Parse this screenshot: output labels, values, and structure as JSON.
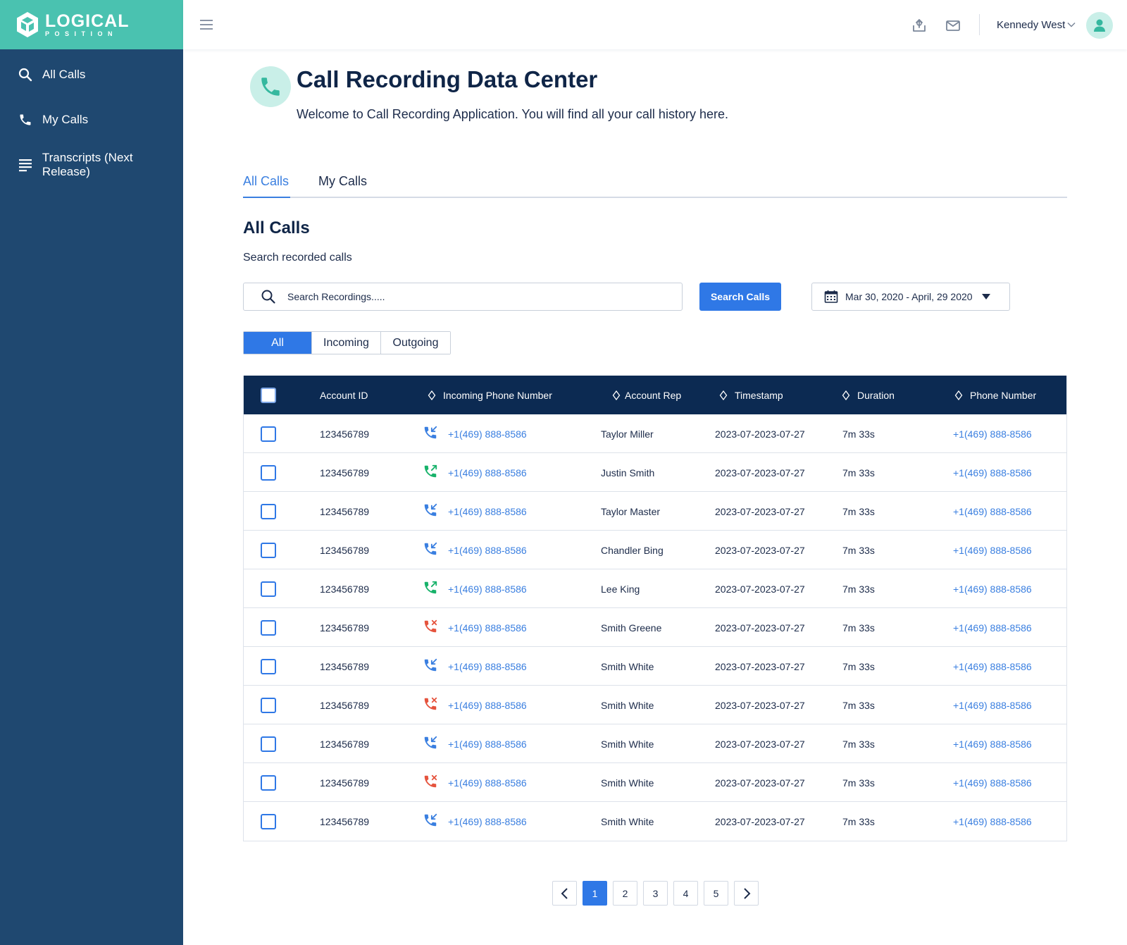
{
  "brand": {
    "name": "LOGICAL",
    "tagline": "POSITION",
    "color": "#4ac2b0"
  },
  "sidebar": {
    "items": [
      {
        "label": "All Calls",
        "icon": "search-icon"
      },
      {
        "label": "My Calls",
        "icon": "phone-icon"
      },
      {
        "label": "Transcripts (Next Release)",
        "icon": "lines-icon"
      }
    ]
  },
  "topbar": {
    "icons": [
      "upload-icon",
      "mail-icon"
    ],
    "user_name": "Kennedy West",
    "avatar_icon": "user-icon"
  },
  "header": {
    "title": "Call Recording Data Center",
    "subtitle": "Welcome to Call Recording Application. You will find all your call history here."
  },
  "tabs": [
    {
      "label": "All Calls",
      "active": true
    },
    {
      "label": "My Calls",
      "active": false
    }
  ],
  "section": {
    "title": "All Calls",
    "subtitle": "Search recorded calls"
  },
  "search": {
    "placeholder": "Search Recordings.....",
    "value": "",
    "button_label": "Search Calls"
  },
  "date_range": {
    "label": "Mar 30, 2020 - April, 29 2020"
  },
  "filters": [
    {
      "label": "All",
      "active": true
    },
    {
      "label": "Incoming",
      "active": false
    },
    {
      "label": "Outgoing",
      "active": false
    }
  ],
  "table": {
    "columns": [
      "Account ID",
      "Incoming Phone Number",
      "Account Rep",
      "Timestamp",
      "Duration",
      "Phone Number"
    ],
    "rows": [
      {
        "account_id": "123456789",
        "call_type": "incoming",
        "incoming_phone": "+1(469) 888-8586",
        "rep": "Taylor Miller",
        "timestamp": "2023-07-2023-07-27",
        "duration": "7m 33s",
        "phone": "+1(469) 888-8586"
      },
      {
        "account_id": "123456789",
        "call_type": "outgoing",
        "incoming_phone": "+1(469) 888-8586",
        "rep": "Justin Smith",
        "timestamp": "2023-07-2023-07-27",
        "duration": "7m 33s",
        "phone": "+1(469) 888-8586"
      },
      {
        "account_id": "123456789",
        "call_type": "incoming",
        "incoming_phone": "+1(469) 888-8586",
        "rep": "Taylor Master",
        "timestamp": "2023-07-2023-07-27",
        "duration": "7m 33s",
        "phone": "+1(469) 888-8586"
      },
      {
        "account_id": "123456789",
        "call_type": "incoming",
        "incoming_phone": "+1(469) 888-8586",
        "rep": "Chandler Bing",
        "timestamp": "2023-07-2023-07-27",
        "duration": "7m 33s",
        "phone": "+1(469) 888-8586"
      },
      {
        "account_id": "123456789",
        "call_type": "outgoing",
        "incoming_phone": "+1(469) 888-8586",
        "rep": "Lee King",
        "timestamp": "2023-07-2023-07-27",
        "duration": "7m 33s",
        "phone": "+1(469) 888-8586"
      },
      {
        "account_id": "123456789",
        "call_type": "missed",
        "incoming_phone": "+1(469) 888-8586",
        "rep": "Smith Greene",
        "timestamp": "2023-07-2023-07-27",
        "duration": "7m 33s",
        "phone": "+1(469) 888-8586"
      },
      {
        "account_id": "123456789",
        "call_type": "incoming",
        "incoming_phone": "+1(469) 888-8586",
        "rep": "Smith White",
        "timestamp": "2023-07-2023-07-27",
        "duration": "7m 33s",
        "phone": "+1(469) 888-8586"
      },
      {
        "account_id": "123456789",
        "call_type": "missed",
        "incoming_phone": "+1(469) 888-8586",
        "rep": "Smith White",
        "timestamp": "2023-07-2023-07-27",
        "duration": "7m 33s",
        "phone": "+1(469) 888-8586"
      },
      {
        "account_id": "123456789",
        "call_type": "incoming",
        "incoming_phone": "+1(469) 888-8586",
        "rep": "Smith White",
        "timestamp": "2023-07-2023-07-27",
        "duration": "7m 33s",
        "phone": "+1(469) 888-8586"
      },
      {
        "account_id": "123456789",
        "call_type": "missed",
        "incoming_phone": "+1(469) 888-8586",
        "rep": "Smith White",
        "timestamp": "2023-07-2023-07-27",
        "duration": "7m 33s",
        "phone": "+1(469) 888-8586"
      },
      {
        "account_id": "123456789",
        "call_type": "incoming",
        "incoming_phone": "+1(469) 888-8586",
        "rep": "Smith White",
        "timestamp": "2023-07-2023-07-27",
        "duration": "7m 33s",
        "phone": "+1(469) 888-8586"
      }
    ]
  },
  "pagination": {
    "pages": [
      "1",
      "2",
      "3",
      "4",
      "5"
    ],
    "current": "1"
  },
  "colors": {
    "sidebar": "#1f4870",
    "accent": "#2f78e6",
    "header_row": "#0c2a52",
    "incoming": "#3a7fe0",
    "outgoing": "#17b26a",
    "missed": "#e5533d"
  }
}
